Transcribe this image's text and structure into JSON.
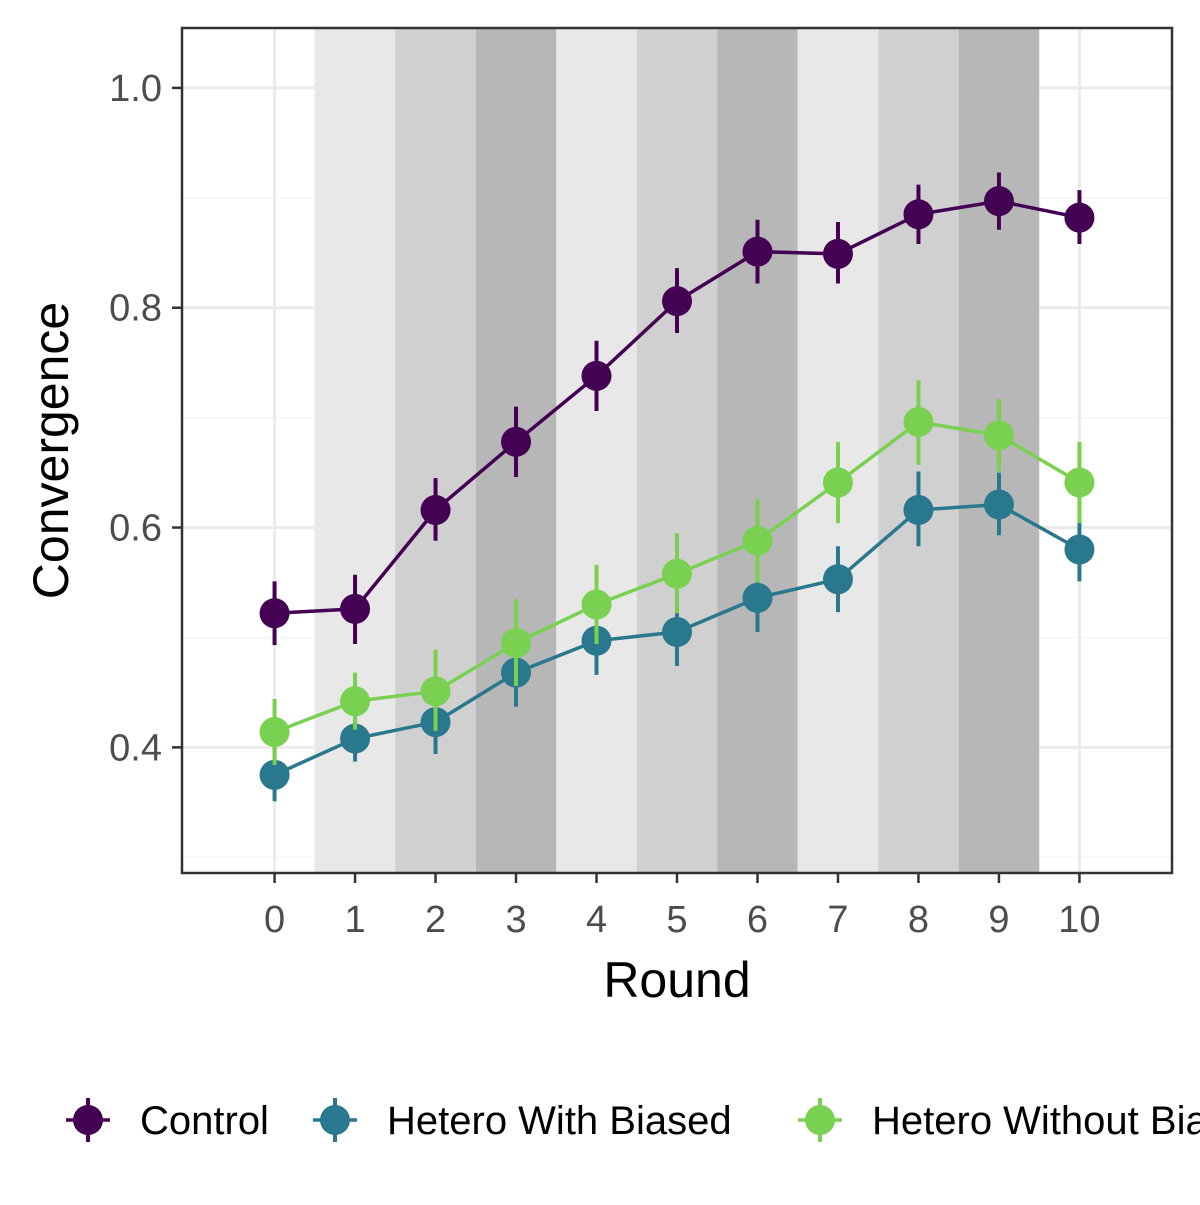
{
  "chart_data": {
    "type": "line",
    "title": "",
    "xlabel": "Round",
    "ylabel": "Convergence",
    "x": [
      0,
      1,
      2,
      3,
      4,
      5,
      6,
      7,
      8,
      9,
      10
    ],
    "xlim": [
      -1.15,
      11.15
    ],
    "ylim": [
      0.2857,
      1.0545
    ],
    "y_ticks": [
      0.4,
      0.6,
      0.8,
      1.0
    ],
    "y_tick_labels": [
      "0.4",
      "0.6",
      "0.8",
      "1.0"
    ],
    "x_tick_labels": [
      "0",
      "1",
      "2",
      "3",
      "4",
      "5",
      "6",
      "7",
      "8",
      "9",
      "10"
    ],
    "grid": true,
    "background_bands": [
      {
        "from": 0.5,
        "to": 1.5,
        "shade": "#e8e8e8"
      },
      {
        "from": 1.5,
        "to": 2.5,
        "shade": "#d0d0d0"
      },
      {
        "from": 2.5,
        "to": 3.5,
        "shade": "#b7b7b7"
      },
      {
        "from": 3.5,
        "to": 4.5,
        "shade": "#e8e8e8"
      },
      {
        "from": 4.5,
        "to": 5.5,
        "shade": "#d0d0d0"
      },
      {
        "from": 5.5,
        "to": 6.5,
        "shade": "#b7b7b7"
      },
      {
        "from": 6.5,
        "to": 7.5,
        "shade": "#e8e8e8"
      },
      {
        "from": 7.5,
        "to": 8.5,
        "shade": "#d0d0d0"
      },
      {
        "from": 8.5,
        "to": 9.5,
        "shade": "#b7b7b7"
      }
    ],
    "legend_position": "bottom",
    "series": [
      {
        "name": "Control",
        "color": "#440154",
        "values": [
          0.522,
          0.526,
          0.616,
          0.678,
          0.738,
          0.806,
          0.851,
          0.849,
          0.885,
          0.897,
          0.882
        ],
        "err_low": [
          0.493,
          0.494,
          0.588,
          0.646,
          0.706,
          0.777,
          0.822,
          0.822,
          0.858,
          0.871,
          0.858
        ],
        "err_high": [
          0.551,
          0.557,
          0.645,
          0.71,
          0.77,
          0.836,
          0.88,
          0.878,
          0.912,
          0.923,
          0.907
        ]
      },
      {
        "name": "Hetero With Biased",
        "color": "#2a788e",
        "values": [
          0.375,
          0.408,
          0.423,
          0.468,
          0.497,
          0.505,
          0.536,
          0.553,
          0.616,
          0.621,
          0.58
        ],
        "err_low": [
          0.351,
          0.387,
          0.394,
          0.437,
          0.466,
          0.474,
          0.505,
          0.523,
          0.583,
          0.593,
          0.551
        ],
        "err_high": [
          0.401,
          0.43,
          0.453,
          0.5,
          0.529,
          0.535,
          0.566,
          0.583,
          0.651,
          0.65,
          0.609
        ]
      },
      {
        "name": "Hetero Without Biased",
        "color": "#7ad151",
        "values": [
          0.414,
          0.442,
          0.451,
          0.495,
          0.53,
          0.558,
          0.588,
          0.641,
          0.696,
          0.684,
          0.641
        ],
        "err_low": [
          0.384,
          0.416,
          0.415,
          0.456,
          0.494,
          0.522,
          0.55,
          0.604,
          0.657,
          0.651,
          0.604
        ],
        "err_high": [
          0.444,
          0.468,
          0.489,
          0.535,
          0.566,
          0.595,
          0.626,
          0.678,
          0.734,
          0.717,
          0.678
        ]
      }
    ]
  }
}
